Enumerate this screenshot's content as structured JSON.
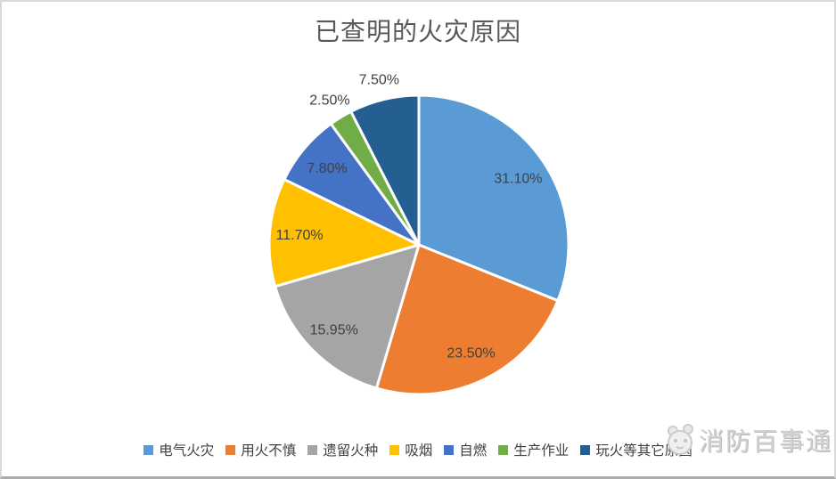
{
  "chart_data": {
    "type": "pie",
    "title": "已查明的火灾原因",
    "legend_position": "bottom",
    "start_angle_deg": 0,
    "clockwise": true,
    "total": 100.05,
    "slices": [
      {
        "label": "电气火灾",
        "value": 31.1,
        "display": "31.10%",
        "color": "#5B9BD5",
        "label_placement": "inside"
      },
      {
        "label": "用火不慎",
        "value": 23.5,
        "display": "23.50%",
        "color": "#ED7D31",
        "label_placement": "inside"
      },
      {
        "label": "遗留火种",
        "value": 15.95,
        "display": "15.95%",
        "color": "#A5A5A5",
        "label_placement": "inside"
      },
      {
        "label": "吸烟",
        "value": 11.7,
        "display": "11.70%",
        "color": "#FFC000",
        "label_placement": "inside"
      },
      {
        "label": "自燃",
        "value": 7.8,
        "display": "7.80%",
        "color": "#4472C4",
        "label_placement": "inside"
      },
      {
        "label": "生产作业",
        "value": 2.5,
        "display": "2.50%",
        "color": "#70AD47",
        "label_placement": "outside"
      },
      {
        "label": "玩火等其它原因",
        "value": 7.5,
        "display": "7.50%",
        "color": "#255E91",
        "label_placement": "outside"
      }
    ],
    "label_color": "#404040",
    "slice_border_color": "#FFFFFF"
  },
  "watermark": {
    "text": "消防百事通"
  }
}
